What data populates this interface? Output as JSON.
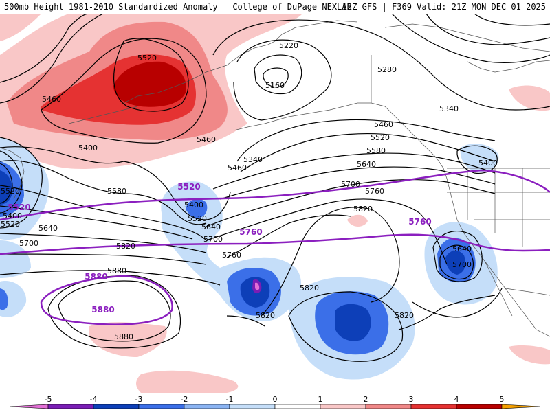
{
  "header": {
    "left": "500mb Height 1981-2010 Standardized Anomaly | College of DuPage NEXLAB",
    "right": "12Z GFS | F369 Valid: 21Z MON DEC 01 2025"
  },
  "colors": {
    "anom_neg5": "#e36fd6",
    "anom_neg4": "#7a1db5",
    "anom_neg3": "#0d3fb8",
    "anom_neg2": "#3b6fe8",
    "anom_neg1": "#c5def9",
    "anom_pos1": "#f9c7c7",
    "anom_pos2": "#f08888",
    "anom_pos3": "#e53232",
    "anom_pos4": "#b80000",
    "anom_pos5": "#f5a000",
    "contour": "#000000",
    "highlight_contour": "#8b1fbf",
    "coast": "#555555"
  },
  "legend": {
    "ticks": [
      "-5",
      "-4",
      "-3",
      "-2",
      "-1",
      "0",
      "1",
      "2",
      "3",
      "4",
      "5"
    ]
  },
  "contour_labels": [
    "5520",
    "5460",
    "5220",
    "5160",
    "5280",
    "5340",
    "5460",
    "5520",
    "5580",
    "5640",
    "5460",
    "5340",
    "5460",
    "5400",
    "5520",
    "5580",
    "5700",
    "5760",
    "5820",
    "5640",
    "5700",
    "5820",
    "5760",
    "5820",
    "5880",
    "5880",
    "5820",
    "5640",
    "5700",
    "5400",
    "5520",
    "5400",
    "5520",
    "5640",
    "5700",
    "5820",
    "5400"
  ],
  "highlight_labels": [
    "5520",
    "5760",
    "5760",
    "5520",
    "5880",
    "5880"
  ]
}
